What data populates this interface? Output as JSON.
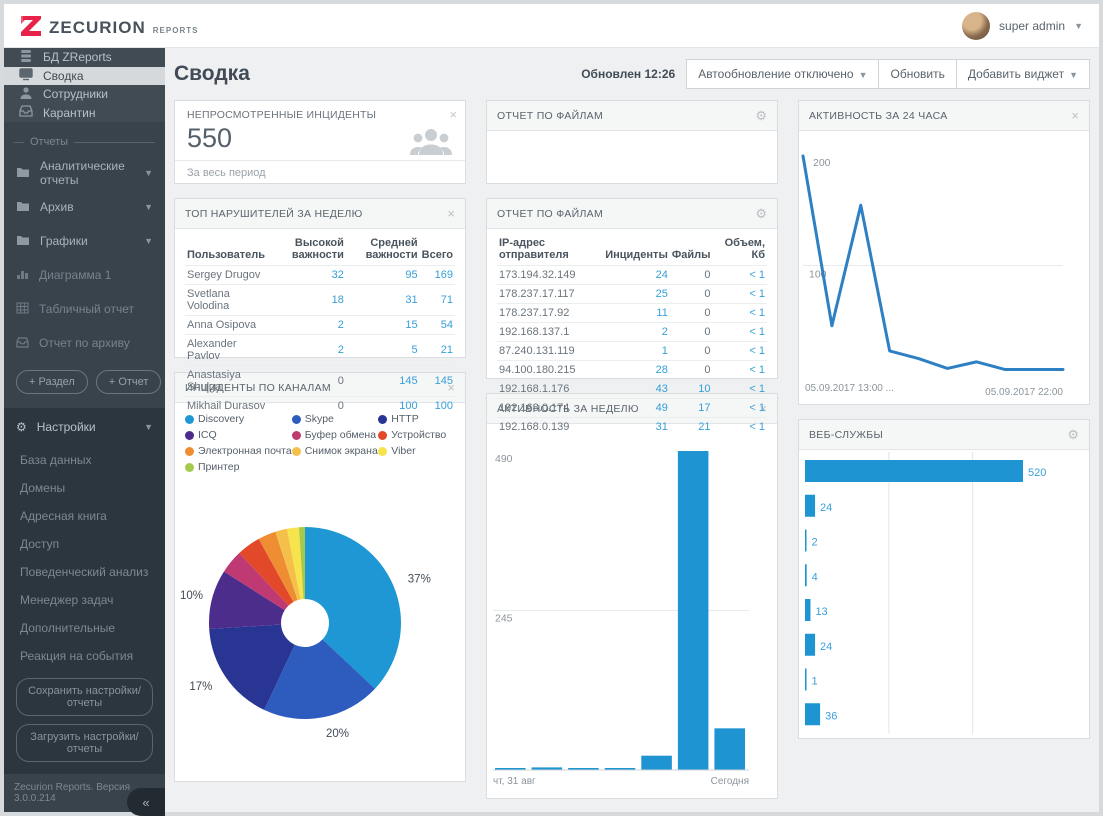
{
  "header": {
    "brand": "ZECURION",
    "brand_sub": "REPORTS",
    "user": "super admin"
  },
  "sidebar": {
    "nav": [
      {
        "label": "БД ZReports"
      },
      {
        "label": "Сводка"
      },
      {
        "label": "Сотрудники"
      },
      {
        "label": "Карантин"
      }
    ],
    "reports_section": "Отчеты",
    "folders": [
      {
        "label": "Аналитические отчеты"
      },
      {
        "label": "Архив"
      },
      {
        "label": "Графики"
      }
    ],
    "sub_reports": [
      {
        "label": "Диаграмма 1"
      },
      {
        "label": "Табличный отчет"
      },
      {
        "label": "Отчет по архиву"
      }
    ],
    "add_section_btn": "+ Раздел",
    "add_report_btn": "+ Отчет",
    "settings": {
      "label": "Настройки",
      "items": [
        {
          "label": "База данных"
        },
        {
          "label": "Домены"
        },
        {
          "label": "Адресная книга"
        },
        {
          "label": "Доступ"
        },
        {
          "label": "Поведенческий анализ"
        },
        {
          "label": "Менеджер задач"
        },
        {
          "label": "Дополнительные"
        },
        {
          "label": "Реакция на события"
        }
      ]
    },
    "save_btn": "Сохранить настройки/отчеты",
    "load_btn": "Загрузить настройки/отчеты",
    "collapse": "«",
    "version": "Zecurion Reports. Версия 3.0.0.214"
  },
  "page": {
    "title": "Сводка",
    "updated": "Обновлен 12:26",
    "autorefresh": "Автообновление отключено",
    "refresh_btn": "Обновить",
    "add_widget_btn": "Добавить виджет"
  },
  "widgets": {
    "unviewed": {
      "title": "НЕПРОСМОТРЕННЫЕ ИНЦИДЕНТЫ",
      "value": "550",
      "period": "За весь период"
    },
    "violators": {
      "title": "ТОП НАРУШИТЕЛЕЙ ЗА НЕДЕЛЮ",
      "columns": [
        "Пользователь",
        "Высокой важности",
        "Средней важности",
        "Всего"
      ],
      "rows": [
        [
          "Sergey Drugov",
          "32",
          "95",
          "169"
        ],
        [
          "Svetlana Volodina",
          "18",
          "31",
          "71"
        ],
        [
          "Anna Osipova",
          "2",
          "15",
          "54"
        ],
        [
          "Alexander Pavlov",
          "2",
          "5",
          "21"
        ],
        [
          "Anastasiya Shulga",
          "0",
          "145",
          "145"
        ],
        [
          "Mikhail Durasov",
          "0",
          "100",
          "100"
        ]
      ]
    },
    "channels": {
      "title": "ИНЦИДЕНТЫ ПО КАНАЛАМ"
    },
    "files_empty": {
      "title": "ОТЧЕТ ПО ФАЙЛАМ"
    },
    "files": {
      "title": "ОТЧЕТ ПО ФАЙЛАМ",
      "columns": [
        "IP-адрес отправителя",
        "Инциденты",
        "Файлы",
        "Объем, Кб"
      ],
      "rows": [
        [
          "173.194.32.149",
          "24",
          "0",
          "< 1"
        ],
        [
          "178.237.17.117",
          "25",
          "0",
          "< 1"
        ],
        [
          "178.237.17.92",
          "11",
          "0",
          "< 1"
        ],
        [
          "192.168.137.1",
          "2",
          "0",
          "< 1"
        ],
        [
          "87.240.131.119",
          "1",
          "0",
          "< 1"
        ],
        [
          "94.100.180.215",
          "28",
          "0",
          "< 1"
        ],
        [
          "192.168.1.176",
          "43",
          "10",
          "< 1"
        ],
        [
          "192.168.0.174",
          "49",
          "17",
          "< 1"
        ],
        [
          "192.168.0.139",
          "31",
          "21",
          "< 1"
        ]
      ]
    },
    "week": {
      "title": "АКТИВНОСТЬ ЗА НЕДЕЛЮ"
    },
    "day": {
      "title": "АКТИВНОСТЬ ЗА 24 ЧАСА"
    },
    "web": {
      "title": "ВЕБ-СЛУЖБЫ"
    }
  },
  "chart_data": [
    {
      "type": "pie",
      "title": "ИНЦИДЕНТЫ ПО КАНАЛАМ",
      "labels": [
        "Discovery",
        "Skype",
        "HTTP",
        "ICQ",
        "Буфер обмена",
        "Устройство",
        "Электронная почта",
        "Снимок экрана",
        "Viber",
        "Принтер"
      ],
      "values": [
        37,
        20,
        17,
        10,
        4,
        4,
        3,
        2,
        2,
        1
      ],
      "colors": [
        "#1e97d4",
        "#2d5cbe",
        "#283593",
        "#4d2d8c",
        "#bf3a73",
        "#e2492a",
        "#ef8d33",
        "#f5c04a",
        "#f7e34c",
        "#a5c94d"
      ],
      "shown_percent_labels": [
        "37%",
        "20%",
        "17%",
        "10%"
      ],
      "donut": true,
      "legend_position": "top"
    },
    {
      "type": "bar",
      "title": "АКТИВНОСТЬ ЗА НЕДЕЛЮ",
      "x_axis_labels": [
        "чт, 31 авг",
        "Сегодня"
      ],
      "values": [
        3,
        4,
        2,
        3,
        22,
        490,
        64
      ],
      "yticks": [
        245,
        490
      ],
      "ylim": [
        0,
        510
      ],
      "color": "#1e95d2",
      "grid": true
    },
    {
      "type": "line",
      "title": "АКТИВНОСТЬ ЗА 24 ЧАСА",
      "x_axis_labels": [
        "05.09.2017 13:00 ...",
        "05.09.2017 22:00"
      ],
      "values": [
        200,
        45,
        155,
        22,
        15,
        6,
        12,
        5,
        5,
        5
      ],
      "yticks": [
        100,
        200
      ],
      "ylim": [
        0,
        210
      ],
      "color": "#2e80c4",
      "grid": true
    },
    {
      "type": "hbar",
      "title": "ВЕБ-СЛУЖБЫ",
      "values": [
        520,
        24,
        2,
        4,
        13,
        24,
        1,
        36
      ],
      "xlim": [
        0,
        560
      ],
      "gridlines": [
        200,
        400
      ],
      "color": "#1e95d2"
    }
  ]
}
